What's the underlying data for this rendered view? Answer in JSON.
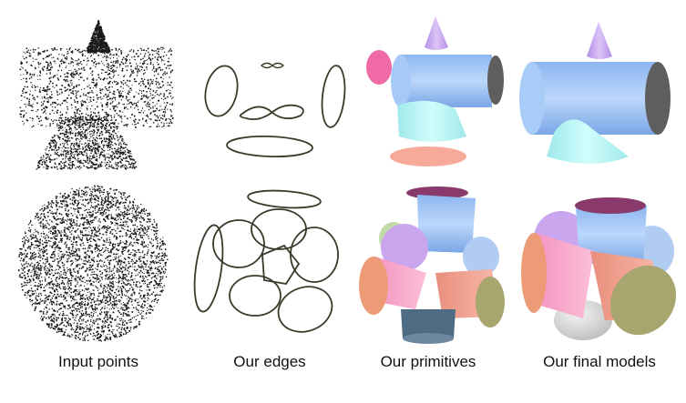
{
  "captions": {
    "input": "Input points",
    "edges": "Our edges",
    "primitives": "Our primitives",
    "final": "Our final models"
  },
  "colors": {
    "points": "#1a1a1a",
    "edges": "#3a3a2a",
    "cylinder_blue": "#9ec3f5",
    "cone_violet": "#c9a6ee",
    "cone_cyan": "#b8f6f5",
    "plane_pink": "#f06aa8",
    "plane_salmon": "#f7a99a",
    "plane_dark": "#5e5e5e",
    "cylinder_pink": "#f9a3c8",
    "cylinder_salmon": "#f2a998",
    "plane_olive": "#a8a66e",
    "plane_orange": "#ec9b76",
    "plane_purple": "#8a3a6a",
    "cylinder_slate": "#4e6b84",
    "sphere_grey": "#e4e4e4"
  }
}
